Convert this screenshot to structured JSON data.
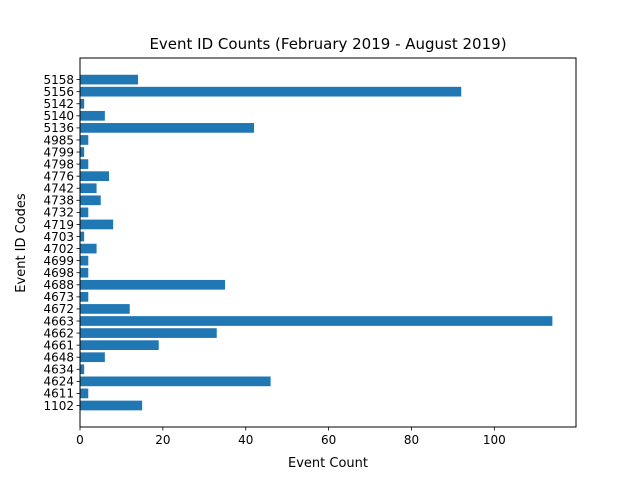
{
  "chart_data": {
    "type": "bar",
    "orientation": "horizontal",
    "title": "Event ID Counts (February 2019 - August 2019)",
    "xlabel": "Event Count",
    "ylabel": "Event ID Codes",
    "categories": [
      "1102",
      "4611",
      "4624",
      "4634",
      "4648",
      "4661",
      "4662",
      "4663",
      "4672",
      "4673",
      "4688",
      "4698",
      "4699",
      "4702",
      "4703",
      "4719",
      "4732",
      "4738",
      "4742",
      "4776",
      "4798",
      "4799",
      "4985",
      "5136",
      "5140",
      "5142",
      "5156",
      "5158"
    ],
    "values": [
      15,
      2,
      46,
      1,
      6,
      19,
      33,
      114,
      12,
      2,
      35,
      2,
      2,
      4,
      1,
      8,
      2,
      5,
      4,
      7,
      2,
      1,
      2,
      42,
      6,
      1,
      92,
      14
    ],
    "xlim": [
      0,
      119.7
    ],
    "xticks": [
      0,
      20,
      40,
      60,
      80,
      100
    ],
    "bar_color": "#1f77b4",
    "grid": false,
    "legend": "none"
  }
}
